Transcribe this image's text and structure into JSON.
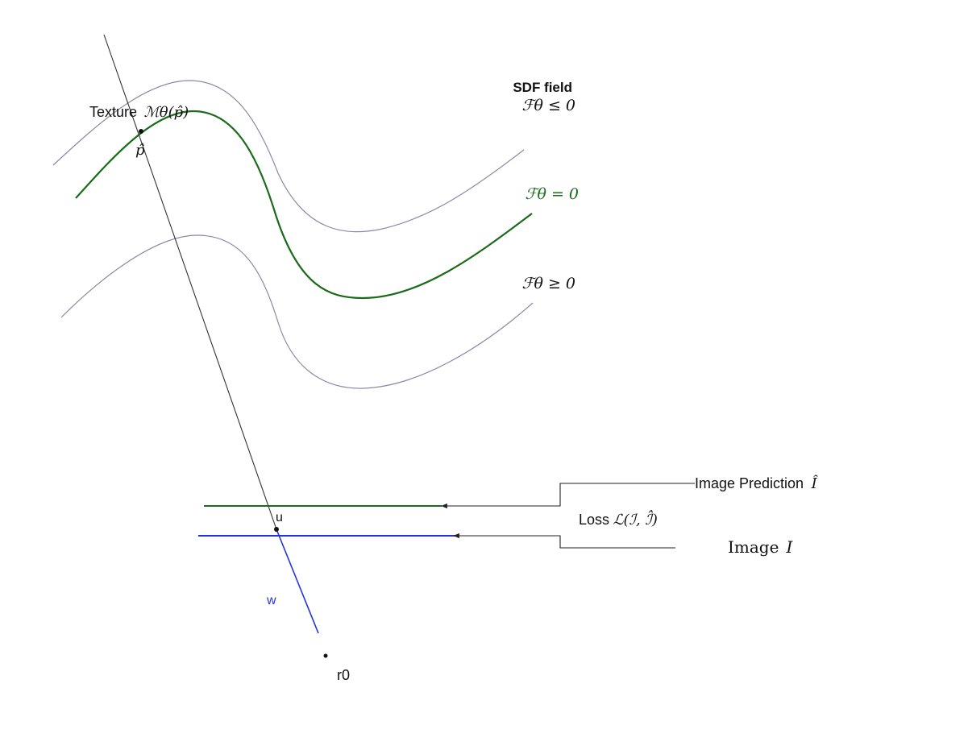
{
  "labels": {
    "sdf_title": "SDF field",
    "sdf_le": "ℱθ ≤ 0",
    "sdf_eq": "ℱθ = 0",
    "sdf_ge": "ℱθ ≥ 0",
    "texture_word": "Texture",
    "texture_math": "ℳθ(p̂)",
    "p_hat": "p̂",
    "u": "u",
    "w": "w",
    "r0": "r0",
    "image_prediction_word": "Image Prediction",
    "image_prediction_math": "Î",
    "loss_word": "Loss",
    "loss_math": "ℒ(ℐ, ℐ̂)",
    "image_word": "Image",
    "image_math": "I"
  },
  "colors": {
    "surface": "#1a6b1a",
    "level_set": "#8a88a8",
    "ray": "#333333",
    "camera_ray": "#2233dd",
    "prediction_line": "#1a6b1a",
    "image_line": "#2233dd",
    "connector": "#222222",
    "w_label": "#2233dd"
  }
}
